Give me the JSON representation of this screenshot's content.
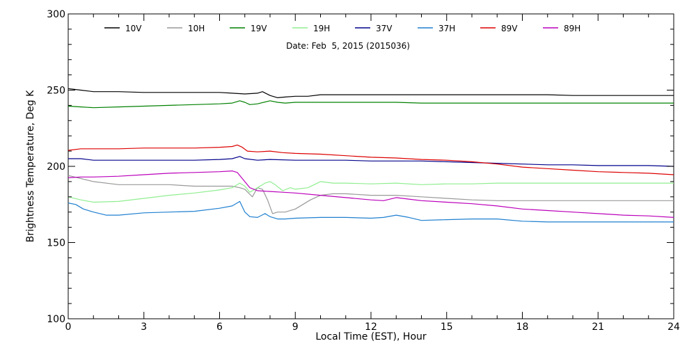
{
  "chart_data": {
    "type": "line",
    "subtitle": "Date: Feb  5, 2015 (2015036)",
    "xlabel": "Local Time (EST), Hour",
    "ylabel": "Brightness Temperature, Deg K",
    "xlim": [
      0,
      24
    ],
    "ylim": [
      100,
      300
    ],
    "x_ticks": [
      0,
      3,
      6,
      9,
      12,
      15,
      18,
      21,
      24
    ],
    "y_ticks": [
      100,
      150,
      200,
      250,
      300
    ],
    "grid": false,
    "legend_position": "top",
    "series": [
      {
        "name": "10V",
        "color": "#000000",
        "x": [
          0,
          0.5,
          1,
          2,
          3,
          4,
          5,
          6,
          6.5,
          7,
          7.5,
          7.7,
          8,
          8.3,
          8.6,
          9,
          9.5,
          10,
          10.5,
          11,
          12,
          13,
          14,
          15,
          16,
          17,
          18,
          19,
          20,
          21,
          22,
          23,
          24
        ],
        "y": [
          251,
          250,
          249,
          249,
          248.5,
          248.5,
          248.5,
          248.5,
          248,
          247.5,
          248,
          249,
          246.5,
          245,
          245.5,
          246,
          246,
          247,
          247,
          247,
          247,
          247,
          247,
          247,
          247,
          247,
          247,
          247,
          246.5,
          246.5,
          246.5,
          246.5,
          246.5
        ]
      },
      {
        "name": "10H",
        "color": "#999999",
        "x": [
          0,
          0.5,
          1,
          2,
          3,
          4,
          5,
          6,
          6.5,
          6.8,
          7,
          7.3,
          7.5,
          7.7,
          7.9,
          8.1,
          8.3,
          8.6,
          9,
          9.3,
          9.6,
          10,
          10.5,
          11,
          12,
          13,
          14,
          15,
          16,
          17,
          18,
          19,
          20,
          21,
          22,
          23,
          24
        ],
        "y": [
          194,
          192,
          190,
          188,
          188,
          188,
          187,
          187,
          187,
          186,
          185,
          180,
          186,
          185,
          178,
          169,
          170,
          170,
          172,
          175,
          178,
          181,
          182,
          182,
          181,
          181,
          180,
          179,
          178,
          177.5,
          177.5,
          177.5,
          177.5,
          177.5,
          177.5,
          177.5,
          177.5
        ]
      },
      {
        "name": "19V",
        "color": "#008000",
        "x": [
          0,
          0.5,
          1,
          2,
          3,
          4,
          5,
          6,
          6.5,
          6.8,
          7,
          7.2,
          7.5,
          8,
          8.3,
          8.6,
          9,
          10,
          11,
          12,
          13,
          14,
          15,
          16,
          17,
          18,
          19,
          20,
          21,
          22,
          23,
          24
        ],
        "y": [
          239.5,
          239,
          238.5,
          239,
          239.5,
          240,
          240.5,
          241,
          241.5,
          243,
          242,
          240.5,
          241,
          243,
          242,
          241.5,
          242,
          242,
          242,
          242,
          242,
          241.5,
          241.5,
          241.5,
          241.5,
          241.5,
          241.5,
          241.5,
          241.5,
          241.5,
          241.5,
          241.5
        ]
      },
      {
        "name": "19H",
        "color": "#90ee90",
        "x": [
          0,
          0.5,
          1,
          2,
          3,
          4,
          5,
          6,
          6.5,
          6.8,
          7,
          7.2,
          7.5,
          7.8,
          8,
          8.2,
          8.5,
          8.8,
          9,
          9.5,
          10,
          10.5,
          11,
          12,
          13,
          14,
          15,
          16,
          17,
          18,
          19,
          20,
          21,
          22,
          23,
          24
        ],
        "y": [
          180,
          178,
          176.5,
          177,
          179,
          181,
          182.5,
          184.5,
          186,
          189,
          187,
          183,
          186,
          189,
          190,
          188,
          184,
          186,
          185,
          186,
          190,
          189,
          189,
          188.5,
          189,
          188,
          188.5,
          188.5,
          189,
          189,
          189,
          189,
          189,
          189,
          189,
          189
        ]
      },
      {
        "name": "37V",
        "color": "#00008b",
        "x": [
          0,
          0.5,
          1,
          2,
          3,
          4,
          5,
          6,
          6.5,
          6.8,
          7,
          7.5,
          8,
          9,
          10,
          11,
          12,
          13,
          14,
          15,
          16,
          17,
          18,
          19,
          20,
          21,
          22,
          23,
          24
        ],
        "y": [
          205,
          205,
          204,
          204,
          204,
          204,
          204,
          204.5,
          205,
          206.5,
          205,
          204,
          204.5,
          204,
          204,
          204,
          203.5,
          203.5,
          203.5,
          203,
          202.5,
          202,
          201.5,
          201,
          201,
          200.5,
          200.5,
          200.5,
          200
        ]
      },
      {
        "name": "37H",
        "color": "#1e7fd0",
        "x": [
          0,
          0.3,
          0.6,
          1,
          1.5,
          2,
          3,
          4,
          5,
          6,
          6.5,
          6.8,
          7,
          7.2,
          7.5,
          7.8,
          8,
          8.3,
          8.6,
          9,
          10,
          11,
          12,
          12.5,
          13,
          13.5,
          14,
          15,
          16,
          17,
          18,
          19,
          20,
          21,
          22,
          23,
          24
        ],
        "y": [
          176,
          175,
          172,
          170,
          168,
          168,
          169.5,
          170,
          170.5,
          172.5,
          174,
          177,
          170,
          167,
          166.5,
          169,
          167,
          165.5,
          165.5,
          166,
          166.5,
          166.5,
          166,
          166.5,
          168,
          166.5,
          164.5,
          165,
          165.5,
          165.5,
          164,
          163.5,
          163.5,
          163.5,
          163.5,
          163.5,
          163.5
        ]
      },
      {
        "name": "89V",
        "color": "#dd0000",
        "x": [
          0,
          0.5,
          1,
          2,
          3,
          4,
          5,
          6,
          6.5,
          6.7,
          6.9,
          7.1,
          7.5,
          8,
          8.5,
          9,
          10,
          11,
          12,
          13,
          14,
          15,
          16,
          17,
          18,
          19,
          20,
          21,
          22,
          23,
          24
        ],
        "y": [
          210.5,
          211.5,
          211.5,
          211.5,
          212,
          212,
          212,
          212.5,
          213,
          214,
          212.5,
          210,
          209.5,
          210,
          209,
          208.5,
          208,
          207,
          206,
          205.5,
          204.5,
          204,
          203,
          201.5,
          199.5,
          198.5,
          197.5,
          196.5,
          196,
          195.5,
          194.5
        ]
      },
      {
        "name": "89H",
        "color": "#bb00bb",
        "x": [
          0,
          0.5,
          1,
          2,
          3,
          4,
          5,
          6,
          6.5,
          6.7,
          6.9,
          7.2,
          7.5,
          8,
          8.5,
          9,
          10,
          11,
          12,
          12.5,
          13,
          13.5,
          14,
          15,
          16,
          17,
          18,
          19,
          20,
          21,
          22,
          23,
          24
        ],
        "y": [
          192.5,
          193,
          193,
          193.5,
          194.5,
          195.5,
          196,
          196.5,
          197,
          196,
          192,
          186,
          184,
          183.5,
          183,
          182.5,
          181,
          179.5,
          178,
          177.5,
          179.5,
          178.5,
          177.5,
          176.5,
          175.5,
          174,
          172,
          171,
          170,
          169,
          168,
          167.5,
          166.5
        ]
      }
    ]
  }
}
